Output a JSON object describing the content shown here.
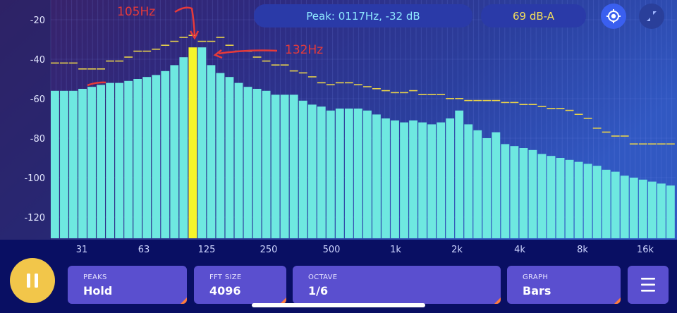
{
  "header": {
    "peak_readout": "Peak: 0117Hz, -32 dB",
    "level_readout": "69 dB-A"
  },
  "icons": {
    "crosshair": "crosshair-icon",
    "collapse": "collapse-icon"
  },
  "annotations": {
    "left_label": "105Hz",
    "right_label": "132Hz"
  },
  "controls": {
    "pause": "pause-icon",
    "peaks": {
      "label": "PEAKS",
      "value": "Hold"
    },
    "fft": {
      "label": "FFT SIZE",
      "value": "4096"
    },
    "octave": {
      "label": "OCTAVE",
      "value": "1/6"
    },
    "graph": {
      "label": "GRAPH",
      "value": "Bars"
    },
    "menu": "menu-icon"
  },
  "colors": {
    "bar": "#6ee8e0",
    "peak_bar": "#f5f52a",
    "hold": "#e8d24a",
    "accent": "#ff7b3a"
  },
  "chart_data": {
    "type": "bar",
    "ylim": [
      -130,
      -15
    ],
    "y_ticks": [
      -20,
      -40,
      -60,
      -80,
      -100,
      -120
    ],
    "y_tick_labels": [
      "-20",
      "-40",
      "-60",
      "-80",
      "-100",
      "-120"
    ],
    "x_tick_labels": [
      "31",
      "63",
      "125",
      "250",
      "500",
      "1k",
      "2k",
      "4k",
      "8k",
      "16k"
    ],
    "highlight_index": 15,
    "values": [
      -56,
      -56,
      -56,
      -55,
      -54,
      -53,
      -52,
      -52,
      -51,
      -50,
      -49,
      -48,
      -46,
      -43,
      -39,
      -34,
      -34,
      -43,
      -47,
      -49,
      -52,
      -54,
      -55,
      -56,
      -58,
      -58,
      -58,
      -61,
      -63,
      -64,
      -66,
      -65,
      -65,
      -65,
      -66,
      -68,
      -70,
      -71,
      -72,
      -71,
      -72,
      -73,
      -72,
      -70,
      -66,
      -73,
      -76,
      -80,
      -77,
      -83,
      -84,
      -85,
      -86,
      -88,
      -89,
      -90,
      -91,
      -92,
      -93,
      -94,
      -96,
      -97,
      -99,
      -100,
      -101,
      -102,
      -103,
      -104
    ],
    "peak_hold": [
      -42,
      -42,
      -42,
      -45,
      -45,
      -45,
      -41,
      -41,
      -39,
      -36,
      -36,
      -35,
      -33,
      -31,
      -29,
      -28,
      -31,
      -31,
      -29,
      -33,
      -36,
      -36,
      -39,
      -41,
      -43,
      -43,
      -46,
      -47,
      -49,
      -52,
      -53,
      -52,
      -52,
      -53,
      -54,
      -55,
      -56,
      -57,
      -57,
      -56,
      -58,
      -58,
      -58,
      -60,
      -60,
      -61,
      -61,
      -61,
      -61,
      -62,
      -62,
      -63,
      -63,
      -64,
      -65,
      -65,
      -66,
      -68,
      -70,
      -75,
      -77,
      -79,
      -79,
      -83,
      -83,
      -83,
      -83,
      -83
    ]
  }
}
